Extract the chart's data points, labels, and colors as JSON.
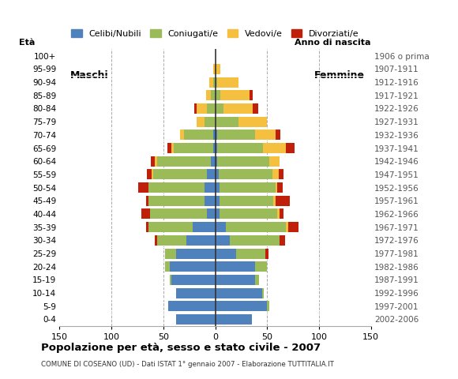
{
  "age_groups": [
    "0-4",
    "5-9",
    "10-14",
    "15-19",
    "20-24",
    "25-29",
    "30-34",
    "35-39",
    "40-44",
    "45-49",
    "50-54",
    "55-59",
    "60-64",
    "65-69",
    "70-74",
    "75-79",
    "80-84",
    "85-89",
    "90-94",
    "95-99",
    "100+"
  ],
  "birth_years": [
    "2002-2006",
    "1997-2001",
    "1992-1996",
    "1987-1991",
    "1982-1986",
    "1977-1981",
    "1972-1976",
    "1967-1971",
    "1962-1966",
    "1957-1961",
    "1952-1956",
    "1947-1951",
    "1942-1946",
    "1937-1941",
    "1932-1936",
    "1927-1931",
    "1922-1926",
    "1917-1921",
    "1912-1916",
    "1907-1911",
    "1906 o prima"
  ],
  "colors": {
    "celibi": "#4f81bd",
    "coniugati": "#9bbb59",
    "vedovi": "#f5c040",
    "divorziati": "#c0200a"
  },
  "males": {
    "celibi": [
      38,
      45,
      38,
      42,
      44,
      38,
      28,
      22,
      8,
      10,
      10,
      8,
      4,
      2,
      2,
      0,
      0,
      0,
      0,
      0,
      0
    ],
    "coniugati": [
      0,
      0,
      0,
      2,
      4,
      10,
      28,
      42,
      55,
      54,
      54,
      52,
      52,
      38,
      28,
      10,
      8,
      4,
      2,
      0,
      0
    ],
    "vedovi": [
      0,
      0,
      0,
      0,
      0,
      0,
      0,
      0,
      0,
      0,
      0,
      1,
      2,
      2,
      4,
      8,
      10,
      5,
      4,
      2,
      0
    ],
    "divorziati": [
      0,
      0,
      0,
      0,
      0,
      0,
      2,
      3,
      8,
      3,
      10,
      5,
      4,
      4,
      0,
      0,
      2,
      0,
      0,
      0,
      0
    ]
  },
  "females": {
    "celibi": [
      35,
      50,
      45,
      38,
      38,
      20,
      14,
      10,
      4,
      4,
      4,
      3,
      2,
      2,
      2,
      0,
      0,
      0,
      0,
      0,
      0
    ],
    "coniugati": [
      0,
      2,
      2,
      4,
      12,
      28,
      48,
      58,
      56,
      52,
      54,
      52,
      50,
      44,
      36,
      22,
      8,
      5,
      2,
      0,
      0
    ],
    "vedovi": [
      0,
      0,
      0,
      0,
      0,
      0,
      0,
      2,
      2,
      2,
      2,
      6,
      10,
      22,
      20,
      28,
      28,
      28,
      20,
      5,
      0
    ],
    "divorziati": [
      0,
      0,
      0,
      0,
      0,
      3,
      5,
      10,
      4,
      14,
      5,
      5,
      0,
      8,
      5,
      0,
      5,
      3,
      0,
      0,
      0
    ]
  },
  "xlim": 150,
  "xlabel_ticks": [
    -150,
    -100,
    -50,
    0,
    50,
    100,
    150
  ],
  "title": "Popolazione per età, sesso e stato civile - 2007",
  "subtitle": "COMUNE DI COSEANO (UD) - Dati ISTAT 1° gennaio 2007 - Elaborazione TUTTITALIA.IT",
  "legend_labels": [
    "Celibi/Nubili",
    "Coniugati/e",
    "Vedovi/e",
    "Divorziati/e"
  ],
  "ylabel_left": "Età",
  "ylabel_right": "Anno di nascita",
  "label_maschi": "Maschi",
  "label_femmine": "Femmine"
}
